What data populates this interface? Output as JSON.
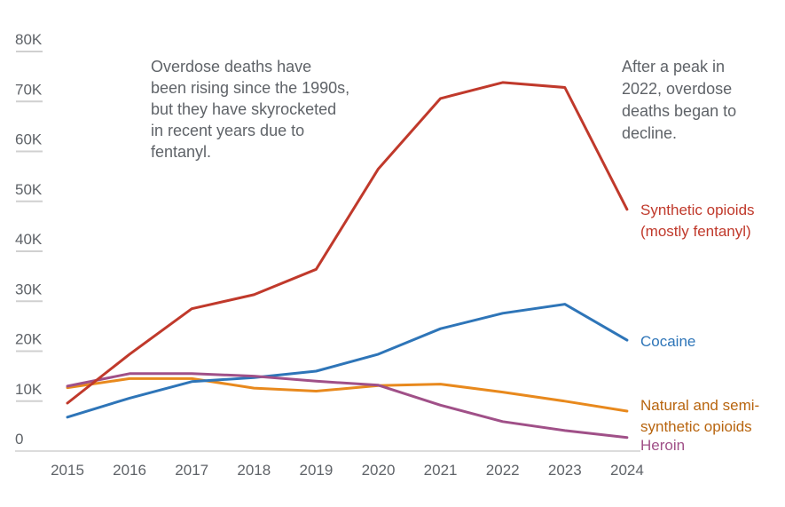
{
  "chart_data": {
    "type": "line",
    "title": "",
    "xlabel": "",
    "ylabel": "",
    "x": [
      "2015",
      "2016",
      "2017",
      "2018",
      "2019",
      "2020",
      "2021",
      "2022",
      "2023",
      "2024"
    ],
    "ylim": [
      0,
      80000
    ],
    "yticks": [
      {
        "value": 0,
        "label": "0"
      },
      {
        "value": 10000,
        "label": "10K"
      },
      {
        "value": 20000,
        "label": "20K"
      },
      {
        "value": 30000,
        "label": "30K"
      },
      {
        "value": 40000,
        "label": "40K"
      },
      {
        "value": 50000,
        "label": "50K"
      },
      {
        "value": 60000,
        "label": "60K"
      },
      {
        "value": 70000,
        "label": "70K"
      },
      {
        "value": 80000,
        "label": "80K"
      }
    ],
    "grid": "short horizontal ticks under y labels",
    "legend": "direct labels at right end of lines",
    "series": [
      {
        "name": "Synthetic opioids (mostly fentanyl)",
        "label_lines": [
          "Synthetic opioids",
          "(mostly fentanyl)"
        ],
        "line_color": "#C0392B",
        "label_color": "#C0392B",
        "values": [
          9600,
          19400,
          28500,
          31300,
          36400,
          56500,
          70600,
          73800,
          72800,
          48400
        ]
      },
      {
        "name": "Cocaine",
        "label_lines": [
          "Cocaine"
        ],
        "line_color": "#2E75B8",
        "label_color": "#2E75B8",
        "values": [
          6800,
          10600,
          13900,
          14700,
          16000,
          19400,
          24500,
          27600,
          29400,
          22200
        ]
      },
      {
        "name": "Natural and semi-synthetic opioids",
        "label_lines": [
          "Natural and semi-",
          "synthetic opioids"
        ],
        "line_color": "#E8891D",
        "label_color": "#B8650F",
        "values": [
          12700,
          14500,
          14500,
          12600,
          12000,
          13100,
          13400,
          11800,
          10000,
          8000
        ]
      },
      {
        "name": "Heroin",
        "label_lines": [
          "Heroin"
        ],
        "line_color": "#A05088",
        "label_color": "#A05088",
        "values": [
          13000,
          15500,
          15500,
          15000,
          14000,
          13200,
          9200,
          5900,
          4100,
          2700
        ]
      }
    ],
    "annotations": [
      {
        "id": "rising",
        "lines": [
          "Overdose deaths have",
          "been rising since the 1990s,",
          "but they have skyrocketed",
          "in recent years due to",
          "fentanyl."
        ]
      },
      {
        "id": "peak",
        "lines": [
          "After a peak in",
          "2022, overdose",
          "deaths began to",
          "decline."
        ]
      }
    ]
  }
}
